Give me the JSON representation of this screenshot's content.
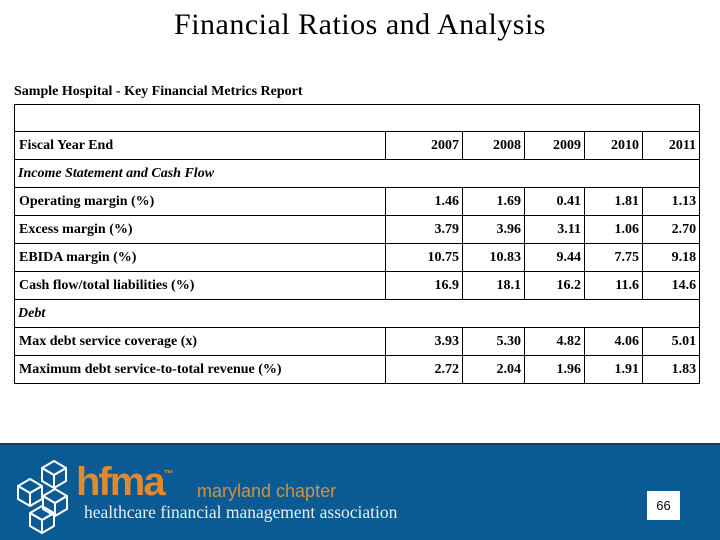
{
  "slide": {
    "title": "Financial Ratios and Analysis",
    "subtitle": "Sample Hospital - Key Financial Metrics Report",
    "page_number": "66"
  },
  "table": {
    "year_columns": [
      "2007",
      "2008",
      "2009",
      "2010",
      "2011"
    ],
    "rows": [
      {
        "type": "blank",
        "label": "",
        "values": []
      },
      {
        "type": "header",
        "label": "Fiscal Year End",
        "values": [
          "2007",
          "2008",
          "2009",
          "2010",
          "2011"
        ]
      },
      {
        "type": "section",
        "label": "Income Statement and Cash Flow",
        "values": []
      },
      {
        "type": "data",
        "label": "Operating margin (%)",
        "values": [
          "1.46",
          "1.69",
          "0.41",
          "1.81",
          "1.13"
        ]
      },
      {
        "type": "data",
        "label": "Excess margin (%)",
        "values": [
          "3.79",
          "3.96",
          "3.11",
          "1.06",
          "2.70"
        ]
      },
      {
        "type": "data",
        "label": "EBIDA margin (%)",
        "values": [
          "10.75",
          "10.83",
          "9.44",
          "7.75",
          "9.18"
        ]
      },
      {
        "type": "data",
        "label": "Cash flow/total liabilities (%)",
        "values": [
          "16.9",
          "18.1",
          "16.2",
          "11.6",
          "14.6"
        ]
      },
      {
        "type": "section",
        "label": "Debt",
        "values": []
      },
      {
        "type": "data",
        "label": "Max debt service coverage (x)",
        "values": [
          "3.93",
          "5.30",
          "4.82",
          "4.06",
          "5.01"
        ]
      },
      {
        "type": "data",
        "label": "Maximum debt service-to-total revenue (%)",
        "values": [
          "2.72",
          "2.04",
          "1.96",
          "1.91",
          "1.83"
        ]
      }
    ]
  },
  "footer": {
    "logo_text": "hfma",
    "trademark": "™",
    "chapter": "maryland chapter",
    "org_name": "healthcare financial management association",
    "colors": {
      "bar_blue": "#0a5b94",
      "bar_top_border": "#123f66",
      "logo_orange": "#e0892e",
      "chapter_orange": "#d2913c",
      "org_text_light": "#e6edf4"
    }
  }
}
